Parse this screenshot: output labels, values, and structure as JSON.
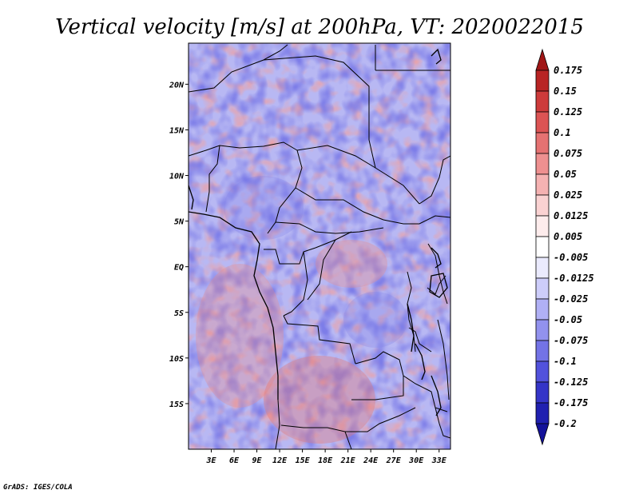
{
  "chart_data": {
    "type": "heatmap",
    "title": "Vertical velocity [m/s] at 200hPa, VT: 2020022015",
    "variable": "Vertical velocity",
    "units": "m/s",
    "level": "200hPa",
    "valid_time": "2020022015",
    "x_ticks": [
      "3E",
      "6E",
      "9E",
      "12E",
      "15E",
      "18E",
      "21E",
      "24E",
      "27E",
      "30E",
      "33E"
    ],
    "y_ticks": [
      "20N",
      "15N",
      "10N",
      "5N",
      "EQ",
      "5S",
      "10S",
      "15S"
    ],
    "x_tick_values": [
      3,
      6,
      9,
      12,
      15,
      18,
      21,
      24,
      27,
      30,
      33
    ],
    "y_tick_values": [
      20,
      15,
      10,
      5,
      0,
      -5,
      -10,
      -15
    ],
    "lon_range": [
      0,
      34.5
    ],
    "lat_range": [
      -20,
      24.5
    ],
    "colorbar": {
      "levels": [
        "0.175",
        "0.15",
        "0.125",
        "0.1",
        "0.075",
        "0.05",
        "0.025",
        "0.0125",
        "0.005",
        "-0.005",
        "-0.0125",
        "-0.025",
        "-0.05",
        "-0.075",
        "-0.1",
        "-0.125",
        "-0.175",
        "-0.2"
      ],
      "colors": [
        "#a01616",
        "#b82424",
        "#cd3b3b",
        "#dc5454",
        "#e57272",
        "#ee9090",
        "#f5b2b2",
        "#fad2d2",
        "#fdecec",
        "#ffffff",
        "#eaeafd",
        "#cdcdfa",
        "#b0b0f5",
        "#9292ee",
        "#7373e6",
        "#5252dc",
        "#3535c8",
        "#2020b0",
        "#14129a"
      ]
    }
  },
  "credit": "GrADS: IGES/COLA"
}
